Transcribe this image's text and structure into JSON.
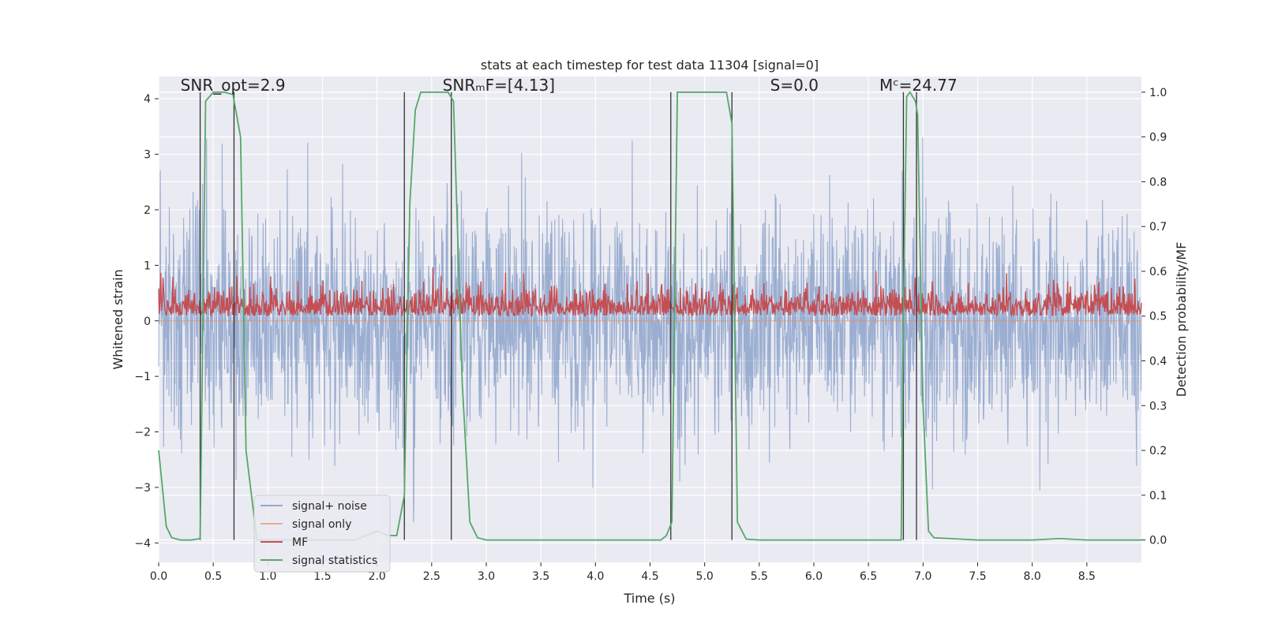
{
  "chart_data": {
    "type": "line",
    "title": "stats at each timestep for test data 11304 [signal=0]",
    "xlabel": "Time (s)",
    "ylabel_left": "Whitened strain",
    "ylabel_right": "Detection probability/MF",
    "xlim": [
      0.0,
      9.0
    ],
    "ylim_left": [
      -4.35,
      4.4
    ],
    "ylim_right": [
      -0.05,
      1.035
    ],
    "x_ticks": [
      0.0,
      0.5,
      1.0,
      1.5,
      2.0,
      2.5,
      3.0,
      3.5,
      4.0,
      4.5,
      5.0,
      5.5,
      6.0,
      6.5,
      7.0,
      7.5,
      8.0,
      8.5
    ],
    "x_tick_labels": [
      "0.0",
      "0.5",
      "1.0",
      "1.5",
      "2.0",
      "2.5",
      "3.0",
      "3.5",
      "4.0",
      "4.5",
      "5.0",
      "5.5",
      "6.0",
      "6.5",
      "7.0",
      "7.5",
      "8.0",
      "8.5"
    ],
    "y_left_ticks": [
      4,
      3,
      2,
      1,
      0,
      -1,
      -2,
      -3,
      -4
    ],
    "y_left_tick_labels": [
      "4",
      "3",
      "2",
      "1",
      "0",
      "−1",
      "−2",
      "−3",
      "−4"
    ],
    "y_right_ticks": [
      1.0,
      0.9,
      0.8,
      0.7,
      0.6,
      0.5,
      0.4,
      0.3,
      0.2,
      0.1,
      0.0
    ],
    "y_right_tick_labels": [
      "1.0",
      "0.9",
      "0.8",
      "0.7",
      "0.6",
      "0.5",
      "0.4",
      "0.3",
      "0.2",
      "0.1",
      "0.0"
    ],
    "grid": true,
    "annotations": [
      {
        "text": "SNR_opt=2.9",
        "x": 0.2
      },
      {
        "text": "SNRₘF=[4.13]",
        "x": 2.6
      },
      {
        "text": "S=0.0",
        "x": 5.6
      },
      {
        "text": "Mᶜ=24.77",
        "x": 6.6
      }
    ],
    "vlines": [
      0.38,
      0.69,
      2.25,
      2.68,
      4.69,
      5.25,
      6.82,
      6.94
    ],
    "series": [
      {
        "name": "signal+ noise",
        "axis": "left",
        "color": "#4c72b0",
        "opacity": 0.5,
        "style": "dense-noise",
        "approx_range": [
          -4.0,
          3.3
        ]
      },
      {
        "name": "signal only",
        "axis": "left",
        "color": "#dd8452",
        "opacity": 0.6,
        "style": "flat",
        "value": 0.0
      },
      {
        "name": "MF",
        "axis": "right",
        "color": "#c44e52",
        "style": "dense-noise",
        "approx_range": [
          0.5,
          0.62
        ]
      },
      {
        "name": "signal statistics",
        "axis": "right",
        "color": "#55a868",
        "x": [
          0.0,
          0.07,
          0.12,
          0.2,
          0.3,
          0.38,
          0.43,
          0.5,
          0.6,
          0.68,
          0.75,
          0.8,
          0.9,
          1.0,
          1.2,
          1.5,
          1.8,
          2.0,
          2.1,
          2.18,
          2.25,
          2.3,
          2.35,
          2.4,
          2.5,
          2.6,
          2.65,
          2.7,
          2.78,
          2.85,
          2.92,
          3.0,
          3.5,
          4.0,
          4.5,
          4.6,
          4.65,
          4.7,
          4.75,
          4.8,
          5.0,
          5.15,
          5.2,
          5.25,
          5.3,
          5.38,
          5.5,
          6.0,
          6.5,
          6.8,
          6.82,
          6.85,
          6.88,
          6.93,
          6.95,
          7.0,
          7.05,
          7.1,
          7.5,
          8.0,
          8.25,
          8.5,
          9.0
        ],
        "values": [
          0.2,
          0.03,
          0.005,
          0.0,
          0.0,
          0.003,
          0.98,
          1.0,
          1.0,
          0.995,
          0.9,
          0.2,
          0.0,
          0.0,
          0.0,
          0.0,
          0.0,
          0.02,
          0.01,
          0.01,
          0.1,
          0.75,
          0.96,
          1.0,
          1.0,
          1.0,
          1.0,
          0.98,
          0.35,
          0.04,
          0.005,
          0.0,
          0.0,
          0.0,
          0.0,
          0.0,
          0.01,
          0.04,
          1.0,
          1.0,
          1.0,
          1.0,
          1.0,
          0.93,
          0.04,
          0.002,
          0.0,
          0.0,
          0.0,
          0.0,
          0.5,
          0.99,
          1.0,
          0.98,
          0.95,
          0.3,
          0.02,
          0.005,
          0.0,
          0.0,
          0.003,
          0.0,
          0.0
        ]
      }
    ],
    "legend": {
      "position": "lower-left",
      "entries": [
        {
          "label": "signal+ noise",
          "color": "#4c72b0",
          "opacity": 0.55
        },
        {
          "label": "signal only",
          "color": "#dd8452",
          "opacity": 0.6
        },
        {
          "label": "MF",
          "color": "#c44e52",
          "opacity": 1.0
        },
        {
          "label": "signal statistics",
          "color": "#55a868",
          "opacity": 1.0
        }
      ]
    },
    "colors": {
      "background": "#eaeaf2",
      "grid": "#ffffff",
      "vline": "#333333"
    }
  }
}
